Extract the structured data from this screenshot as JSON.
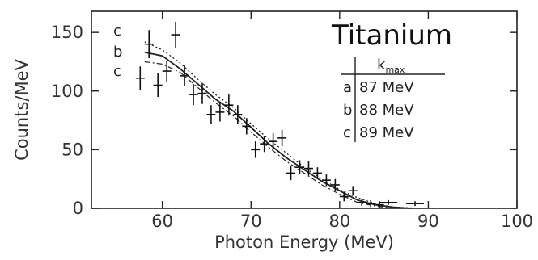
{
  "chart_data": {
    "type": "scatter",
    "title": "Titanium",
    "xlabel": "Photon Energy (MeV)",
    "ylabel": "Counts/MeV",
    "xlim": [
      52,
      100
    ],
    "ylim": [
      0,
      168
    ],
    "xticks": [
      60,
      70,
      80,
      90,
      100
    ],
    "yticks": [
      0,
      50,
      100,
      150
    ],
    "x_tick_labels": [
      "60",
      "70",
      "80",
      "90",
      "100"
    ],
    "y_tick_labels": [
      "0",
      "50",
      "100",
      "150"
    ],
    "grid": false,
    "legend": {
      "header": "k",
      "header_sub": "max",
      "entries": [
        {
          "key": "a",
          "value": "87 MeV"
        },
        {
          "key": "b",
          "value": "88 MeV"
        },
        {
          "key": "c",
          "value": "89 MeV"
        }
      ]
    },
    "curve_tags": [
      "c",
      "b",
      "c"
    ],
    "series": [
      {
        "kind": "points",
        "points": [
          {
            "x": 57.5,
            "y": 111,
            "xerr": 0.5,
            "yerr": 10
          },
          {
            "x": 58.5,
            "y": 140,
            "xerr": 0.5,
            "yerr": 12
          },
          {
            "x": 59.5,
            "y": 105,
            "xerr": 0.5,
            "yerr": 10
          },
          {
            "x": 60.5,
            "y": 117,
            "xerr": 0.5,
            "yerr": 9
          },
          {
            "x": 61.5,
            "y": 148,
            "xerr": 0.5,
            "yerr": 11
          },
          {
            "x": 62.5,
            "y": 113,
            "xerr": 0.5,
            "yerr": 9
          },
          {
            "x": 63.5,
            "y": 97,
            "xerr": 0.5,
            "yerr": 9
          },
          {
            "x": 64.5,
            "y": 98,
            "xerr": 0.5,
            "yerr": 9
          },
          {
            "x": 65.5,
            "y": 80,
            "xerr": 0.5,
            "yerr": 8
          },
          {
            "x": 66.5,
            "y": 82,
            "xerr": 0.5,
            "yerr": 8
          },
          {
            "x": 67.5,
            "y": 88,
            "xerr": 0.5,
            "yerr": 9
          },
          {
            "x": 68.5,
            "y": 80,
            "xerr": 0.5,
            "yerr": 8
          },
          {
            "x": 69.5,
            "y": 70,
            "xerr": 0.5,
            "yerr": 7
          },
          {
            "x": 70.5,
            "y": 50,
            "xerr": 0.5,
            "yerr": 7
          },
          {
            "x": 71.5,
            "y": 55,
            "xerr": 0.5,
            "yerr": 7
          },
          {
            "x": 72.5,
            "y": 57,
            "xerr": 0.5,
            "yerr": 7
          },
          {
            "x": 73.5,
            "y": 60,
            "xerr": 0.5,
            "yerr": 7
          },
          {
            "x": 74.5,
            "y": 30,
            "xerr": 0.5,
            "yerr": 6
          },
          {
            "x": 75.5,
            "y": 35,
            "xerr": 0.5,
            "yerr": 6
          },
          {
            "x": 76.5,
            "y": 34,
            "xerr": 0.5,
            "yerr": 6
          },
          {
            "x": 77.5,
            "y": 30,
            "xerr": 0.5,
            "yerr": 5
          },
          {
            "x": 78.5,
            "y": 24,
            "xerr": 0.5,
            "yerr": 5
          },
          {
            "x": 79.5,
            "y": 20,
            "xerr": 0.5,
            "yerr": 5
          },
          {
            "x": 80.5,
            "y": 10,
            "xerr": 0.5,
            "yerr": 4
          },
          {
            "x": 81.5,
            "y": 15,
            "xerr": 0.5,
            "yerr": 4
          },
          {
            "x": 82.5,
            "y": 5,
            "xerr": 0.5,
            "yerr": 3
          },
          {
            "x": 83.5,
            "y": 4,
            "xerr": 0.5,
            "yerr": 3
          },
          {
            "x": 84.5,
            "y": 3,
            "xerr": 0.5,
            "yerr": 3
          },
          {
            "x": 85.5,
            "y": 5,
            "xerr": 1.0,
            "yerr": 2
          },
          {
            "x": 88.5,
            "y": 4,
            "xerr": 1.0,
            "yerr": 2
          }
        ]
      },
      {
        "kind": "curve",
        "style": "solid",
        "points": [
          [
            58,
            133
          ],
          [
            60,
            130
          ],
          [
            62,
            119
          ],
          [
            64,
            106
          ],
          [
            66,
            93
          ],
          [
            68,
            83
          ],
          [
            70,
            69
          ],
          [
            72,
            55
          ],
          [
            74,
            43
          ],
          [
            76,
            33
          ],
          [
            78,
            23
          ],
          [
            80,
            15
          ],
          [
            82,
            7
          ],
          [
            84,
            3
          ],
          [
            86,
            1
          ],
          [
            88,
            0
          ]
        ]
      },
      {
        "kind": "curve",
        "style": "dotted",
        "points": [
          [
            58,
            142
          ],
          [
            60,
            135
          ],
          [
            62,
            124
          ],
          [
            64,
            110
          ],
          [
            66,
            97
          ],
          [
            68,
            86
          ],
          [
            70,
            72
          ],
          [
            72,
            59
          ],
          [
            74,
            47
          ],
          [
            76,
            35
          ],
          [
            78,
            25
          ],
          [
            80,
            16
          ],
          [
            82,
            9
          ],
          [
            84,
            4
          ],
          [
            86,
            1
          ],
          [
            89,
            0
          ]
        ]
      },
      {
        "kind": "curve",
        "style": "dashdot",
        "points": [
          [
            58,
            125
          ],
          [
            60,
            123
          ],
          [
            62,
            116
          ],
          [
            64,
            103
          ],
          [
            66,
            90
          ],
          [
            68,
            79
          ],
          [
            70,
            65
          ],
          [
            72,
            52
          ],
          [
            74,
            40
          ],
          [
            76,
            30
          ],
          [
            78,
            20
          ],
          [
            80,
            12
          ],
          [
            82,
            5
          ],
          [
            84,
            2
          ],
          [
            86,
            0
          ]
        ]
      }
    ]
  }
}
